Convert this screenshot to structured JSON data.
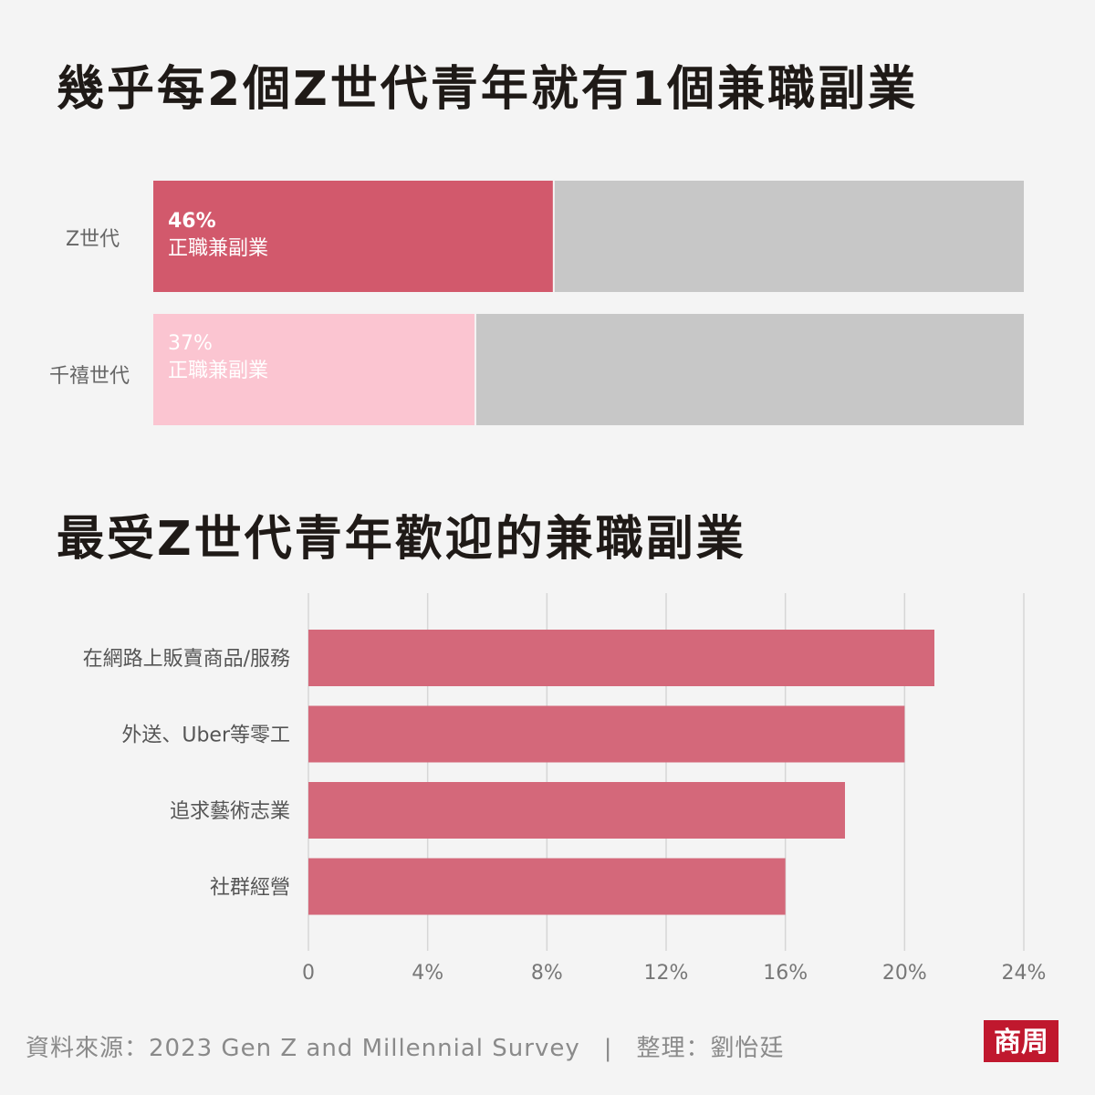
{
  "chart_data": [
    {
      "type": "bar",
      "orientation": "horizontal",
      "stacked": true,
      "title": "幾乎每2個Z世代青年就有1個兼職副業",
      "categories": [
        "Z世代",
        "千禧世代"
      ],
      "series": [
        {
          "name": "正職兼副業",
          "values": [
            46,
            37
          ],
          "labels": [
            "46%",
            "37%"
          ],
          "colors": [
            "#d2596c",
            "#fbc5d1"
          ]
        }
      ],
      "xlim": [
        0,
        100
      ],
      "remainder_color": "#c7c7c7"
    },
    {
      "type": "bar",
      "orientation": "horizontal",
      "title": "最受Z世代青年歡迎的兼職副業",
      "categories": [
        "在網路上販賣商品/服務",
        "外送、Uber等零工",
        "追求藝術志業",
        "社群經營"
      ],
      "values": [
        21,
        20,
        18,
        16
      ],
      "xlim": [
        0,
        24
      ],
      "xticks": [
        "0",
        "4%",
        "8%",
        "12%",
        "16%",
        "20%",
        "24%"
      ],
      "xtick_values": [
        0,
        4,
        8,
        12,
        16,
        20,
        24
      ],
      "grid": true,
      "bar_color": "#d4687a"
    }
  ],
  "footer": {
    "source": "資料來源：2023 Gen Z and Millennial Survey",
    "separator": "|",
    "editor": "整理：劉怡廷"
  },
  "logo_text": "商周"
}
